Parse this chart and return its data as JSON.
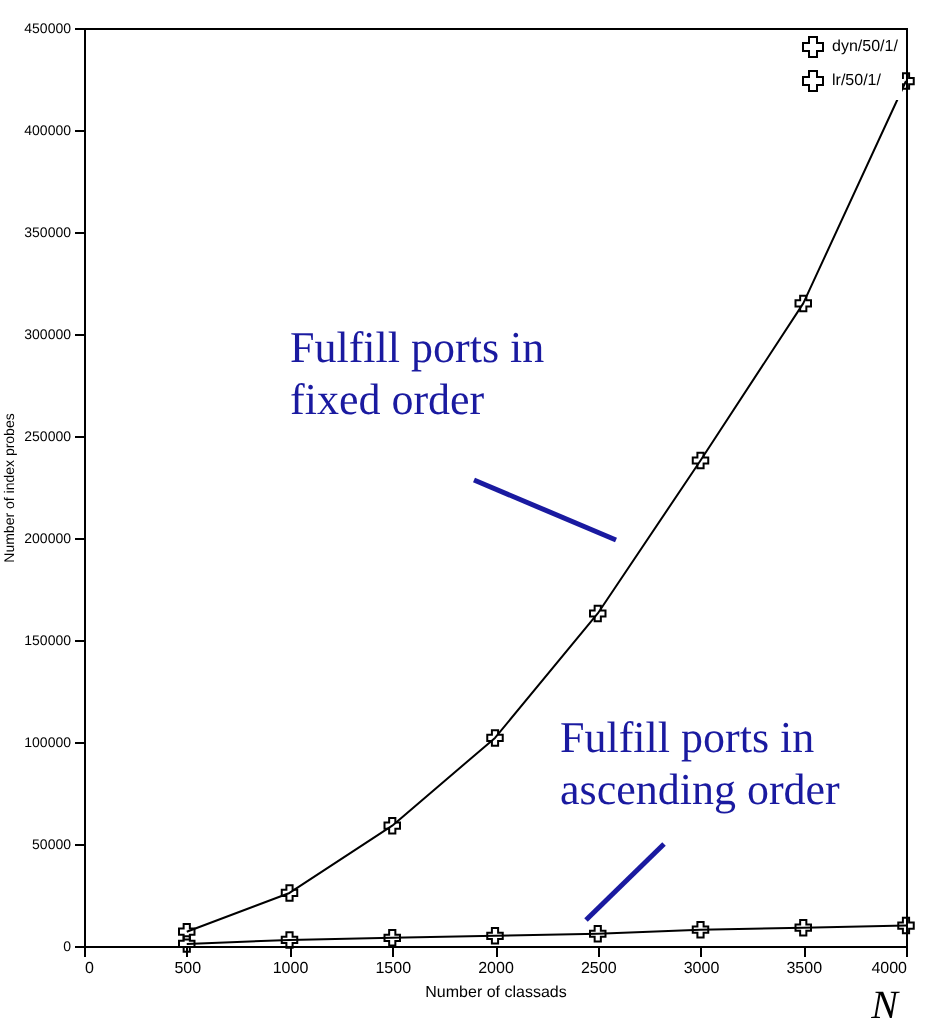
{
  "chart_data": {
    "type": "line",
    "xlabel": "Number of classads",
    "ylabel": "Number of index probes",
    "x": [
      500,
      1000,
      1500,
      2000,
      2500,
      3000,
      3500,
      4000
    ],
    "series": [
      {
        "name": "dyn/50/1/",
        "color": "#000000",
        "values": [
          1000,
          3000,
          4000,
          5000,
          6000,
          8000,
          9000,
          10000
        ]
      },
      {
        "name": "lr/50/1/",
        "color": "#000000",
        "values": [
          7000,
          26000,
          59000,
          102000,
          163000,
          238000,
          315000,
          424000
        ]
      }
    ],
    "xlim": [
      0,
      4000
    ],
    "xticks": [
      0,
      500,
      1000,
      1500,
      2000,
      2500,
      3000,
      3500,
      4000
    ],
    "ylim": [
      0,
      450000
    ],
    "yticks": [
      0,
      50000,
      100000,
      150000,
      200000,
      250000,
      300000,
      350000,
      400000,
      450000
    ],
    "grid": false,
    "legend": "top right",
    "marker": "cross",
    "annotations": [
      "Fulfill ports in\nfixed order",
      "Fulfill ports in\nascending order",
      "N"
    ]
  }
}
